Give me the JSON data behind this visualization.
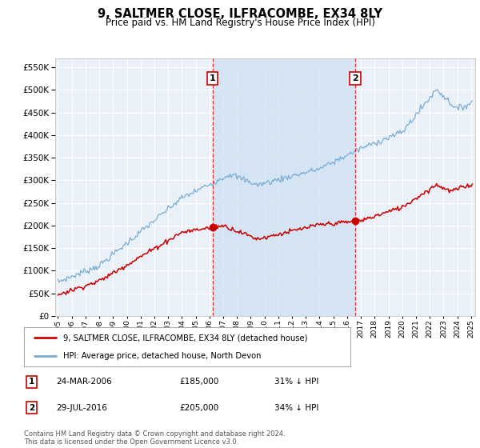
{
  "title": "9, SALTMER CLOSE, ILFRACOMBE, EX34 8LY",
  "subtitle": "Price paid vs. HM Land Registry's House Price Index (HPI)",
  "hpi_label": "HPI: Average price, detached house, North Devon",
  "price_label": "9, SALTMER CLOSE, ILFRACOMBE, EX34 8LY (detached house)",
  "hpi_color": "#7aadd4",
  "price_color": "#cc0000",
  "marker1_date_label": "24-MAR-2006",
  "marker1_price": 185000,
  "marker1_pct": "31% ↓ HPI",
  "marker2_date_label": "29-JUL-2016",
  "marker2_price": 205000,
  "marker2_pct": "34% ↓ HPI",
  "marker1_x": 2006.23,
  "marker2_x": 2016.58,
  "ylim": [
    0,
    570000
  ],
  "xlim": [
    1994.8,
    2025.3
  ],
  "yticks": [
    0,
    50000,
    100000,
    150000,
    200000,
    250000,
    300000,
    350000,
    400000,
    450000,
    500000,
    550000
  ],
  "shade_color": "#ccdff0",
  "background_color": "#ffffff",
  "plot_bg": "#eaf0f8",
  "grid_color": "#ffffff",
  "footer": "Contains HM Land Registry data © Crown copyright and database right 2024.\nThis data is licensed under the Open Government Licence v3.0."
}
